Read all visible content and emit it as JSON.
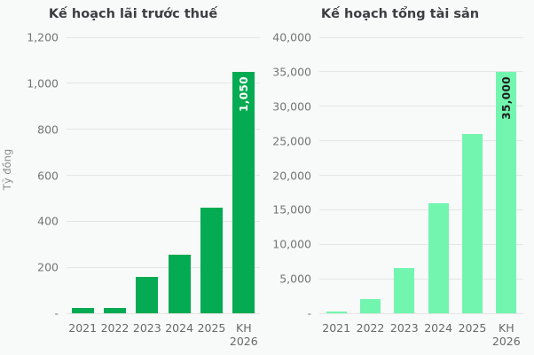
{
  "background_color": "#f8f9f9",
  "grid_color": "#e5e5e5",
  "chart_data": [
    {
      "type": "bar",
      "title": "Kế hoạch lãi trước thuế",
      "ylabel": "Tỷ đồng",
      "xlabel": "",
      "categories": [
        "2021",
        "2022",
        "2023",
        "2024",
        "2025",
        "KH 2026"
      ],
      "xtick_display": [
        "2021",
        "2022",
        "2023",
        "2024",
        "2025",
        "KH\n2026"
      ],
      "values": [
        25,
        25,
        160,
        255,
        460,
        1050
      ],
      "ylim": [
        0,
        1200
      ],
      "ytick_step": 200,
      "yticks": [
        "1,200",
        "1,000",
        "800",
        "600",
        "400",
        "200",
        "-"
      ],
      "bar_color": "#04ab52",
      "grid": true,
      "legend": "none",
      "bar_value_label": {
        "index": 5,
        "text": "1,050",
        "color": "#ffffff"
      }
    },
    {
      "type": "bar",
      "title": "Kế hoạch tổng tài sản",
      "ylabel": "",
      "xlabel": "",
      "categories": [
        "2021",
        "2022",
        "2023",
        "2024",
        "2025",
        "KH 2026"
      ],
      "xtick_display": [
        "2021",
        "2022",
        "2023",
        "2024",
        "2025",
        "KH\n2026"
      ],
      "values": [
        250,
        2000,
        6500,
        16000,
        26000,
        35000
      ],
      "ylim": [
        0,
        40000
      ],
      "ytick_step": 5000,
      "yticks": [
        "40,000",
        "35,000",
        "30,000",
        "25,000",
        "20,000",
        "15,000",
        "10,000",
        "5,000",
        "-"
      ],
      "bar_color": "#72f6af",
      "grid": true,
      "legend": "none",
      "bar_value_label": {
        "index": 5,
        "text": "35,000",
        "color": "#1f1f1f"
      }
    }
  ]
}
